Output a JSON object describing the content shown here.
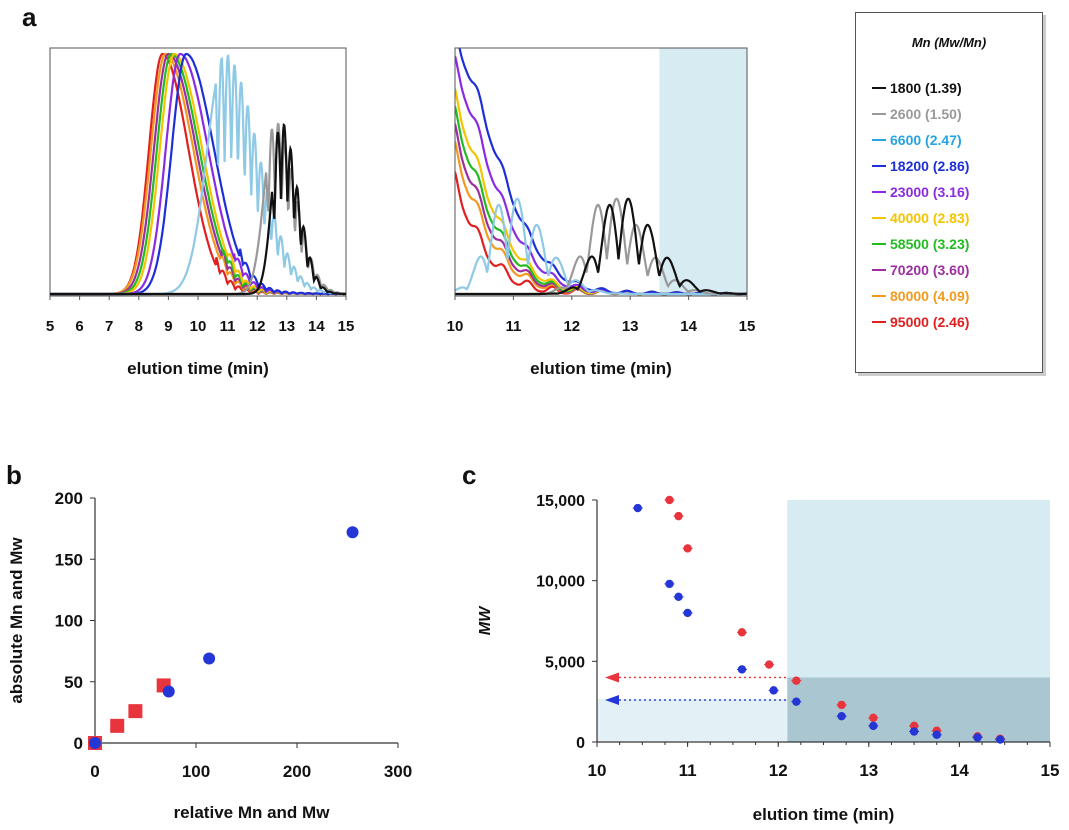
{
  "panels": {
    "a": "a",
    "b": "b",
    "c": "c"
  },
  "legend": {
    "title": "Mn (Mw/Mn)",
    "items": [
      {
        "label": "1800 (1.39)",
        "color": "#111111"
      },
      {
        "label": "2600 (1.50)",
        "color": "#999999"
      },
      {
        "label": "6600 (2.47)",
        "color": "#29a3e0"
      },
      {
        "label": "18200 (2.86)",
        "color": "#1d2fd6"
      },
      {
        "label": "23000 (3.16)",
        "color": "#8a2be2"
      },
      {
        "label": "40000 (2.83)",
        "color": "#f5c400"
      },
      {
        "label": "58500 (3.23)",
        "color": "#22bb22"
      },
      {
        "label": "70200 (3.60)",
        "color": "#9b2fa0"
      },
      {
        "label": "80000 (4.09)",
        "color": "#f39a1d"
      },
      {
        "label": "95000 (2.46)",
        "color": "#e02020"
      }
    ]
  },
  "chart_data": [
    {
      "id": "a-left",
      "type": "line",
      "xlabel": "elution time (min)",
      "xlim": [
        5,
        15
      ],
      "xticks": [
        5,
        6,
        7,
        8,
        9,
        10,
        11,
        12,
        13,
        14,
        15
      ],
      "ylabel": "",
      "grid": false,
      "series": [
        {
          "name": "1800 (1.39)",
          "color": "#111111",
          "peak": 12.8,
          "width": 0.45,
          "oscillating": true
        },
        {
          "name": "2600 (1.50)",
          "color": "#999999",
          "peak": 12.6,
          "width": 0.55,
          "oscillating": true
        },
        {
          "name": "6600 (2.47)",
          "color": "#8ec9e6",
          "peak": 10.9,
          "width": 0.9,
          "oscillating": true
        },
        {
          "name": "18200 (2.86)",
          "color": "#1d2fd6",
          "peak": 9.6,
          "width": 0.75,
          "oscillating": false
        },
        {
          "name": "23000 (3.16)",
          "color": "#8a2be2",
          "peak": 9.4,
          "width": 0.75,
          "oscillating": false
        },
        {
          "name": "40000 (2.83)",
          "color": "#f5c400",
          "peak": 9.2,
          "width": 0.75,
          "oscillating": false
        },
        {
          "name": "58500 (3.23)",
          "color": "#22bb22",
          "peak": 9.1,
          "width": 0.75,
          "oscillating": false
        },
        {
          "name": "70200 (3.60)",
          "color": "#9b2fa0",
          "peak": 9.0,
          "width": 0.75,
          "oscillating": false
        },
        {
          "name": "80000 (4.09)",
          "color": "#f39a1d",
          "peak": 8.9,
          "width": 0.75,
          "oscillating": false
        },
        {
          "name": "95000 (2.46)",
          "color": "#e02020",
          "peak": 8.8,
          "width": 0.7,
          "oscillating": false
        }
      ]
    },
    {
      "id": "a-right",
      "type": "line",
      "xlabel": "elution time (min)",
      "xlim": [
        10,
        15
      ],
      "xticks": [
        10,
        11,
        12,
        13,
        14,
        15
      ],
      "shaded_region": [
        13.5,
        15
      ],
      "grid": false
    },
    {
      "id": "b",
      "type": "scatter",
      "xlabel": "relative Mn and Mw",
      "ylabel": "absolute Mn and Mw",
      "xlim": [
        0,
        300
      ],
      "ylim": [
        0,
        200
      ],
      "xticks": [
        0,
        100,
        200,
        300
      ],
      "yticks": [
        0,
        50,
        100,
        150,
        200
      ],
      "series": [
        {
          "marker": "square",
          "color": "#e8343c",
          "points": [
            [
              0,
              0
            ],
            [
              22,
              14
            ],
            [
              40,
              26
            ],
            [
              68,
              47
            ]
          ]
        },
        {
          "marker": "circle",
          "color": "#2436d6",
          "points": [
            [
              0,
              0
            ],
            [
              73,
              42
            ],
            [
              113,
              69
            ],
            [
              255,
              172
            ]
          ]
        }
      ]
    },
    {
      "id": "c",
      "type": "scatter",
      "xlabel": "elution time (min)",
      "ylabel": "MW",
      "xlim": [
        10,
        15
      ],
      "ylim": [
        0,
        15000
      ],
      "xticks": [
        10,
        11,
        12,
        13,
        14,
        15
      ],
      "yticks": [
        0,
        5000,
        10000,
        15000
      ],
      "ytick_labels": [
        "0",
        "5,000",
        "10,000",
        "15,000"
      ],
      "shaded_region": [
        12.1,
        15
      ],
      "dark_region": {
        "x": [
          12.1,
          15
        ],
        "y": [
          0,
          4000
        ]
      },
      "arrows": [
        {
          "y": 4000,
          "color": "#e8343c"
        },
        {
          "y": 2600,
          "color": "#2436d6"
        }
      ],
      "series": [
        {
          "color": "#e8343c",
          "points": [
            [
              10.8,
              15000
            ],
            [
              10.9,
              14000
            ],
            [
              11.0,
              12000
            ],
            [
              11.6,
              6800
            ],
            [
              11.9,
              4800
            ],
            [
              12.2,
              3800
            ],
            [
              12.7,
              2300
            ],
            [
              13.05,
              1500
            ],
            [
              13.5,
              1000
            ],
            [
              13.75,
              700
            ],
            [
              14.2,
              350
            ],
            [
              14.45,
              200
            ]
          ]
        },
        {
          "color": "#2436d6",
          "points": [
            [
              10.45,
              14500
            ],
            [
              10.8,
              9800
            ],
            [
              10.9,
              9000
            ],
            [
              11.0,
              8000
            ],
            [
              11.6,
              4500
            ],
            [
              11.95,
              3200
            ],
            [
              12.2,
              2500
            ],
            [
              12.7,
              1600
            ],
            [
              13.05,
              1000
            ],
            [
              13.5,
              650
            ],
            [
              13.75,
              450
            ],
            [
              14.2,
              280
            ],
            [
              14.45,
              150
            ]
          ]
        }
      ]
    }
  ]
}
